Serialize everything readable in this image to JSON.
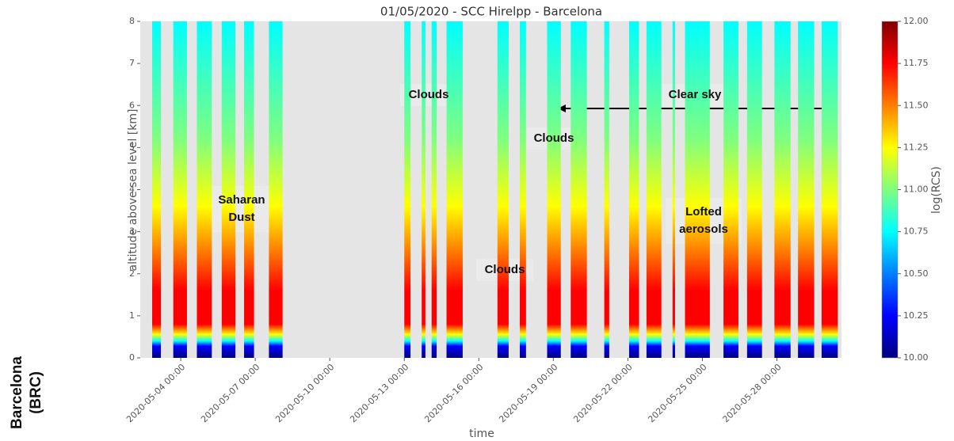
{
  "chart_data": {
    "type": "lidar-timeheight",
    "title": "01/05/2020 - SCC Hirelpp - Barcelona",
    "x_label": "time",
    "y_label": "altitude above sea level [km]",
    "colorbar_label": "log(RCS)",
    "xlim": [
      2.37,
      30.6
    ],
    "xticks": [
      {
        "value": 4,
        "label": "2020-05-04 00:00"
      },
      {
        "value": 7,
        "label": "2020-05-07 00:00"
      },
      {
        "value": 10,
        "label": "2020-05-10 00:00"
      },
      {
        "value": 13,
        "label": "2020-05-13 00:00"
      },
      {
        "value": 16,
        "label": "2020-05-16 00:00"
      },
      {
        "value": 19,
        "label": "2020-05-19 00:00"
      },
      {
        "value": 22,
        "label": "2020-05-22 00:00"
      },
      {
        "value": 25,
        "label": "2020-05-25 00:00"
      },
      {
        "value": 28,
        "label": "2020-05-28 00:00"
      }
    ],
    "ylim": [
      0,
      8
    ],
    "yticks": [
      0,
      1,
      2,
      3,
      4,
      5,
      6,
      7,
      8
    ],
    "clim": [
      10,
      12
    ],
    "cticks": [
      {
        "value": 10,
        "label": "10.00"
      },
      {
        "value": 10.25,
        "label": "10.25"
      },
      {
        "value": 10.5,
        "label": "10.50"
      },
      {
        "value": 10.75,
        "label": "10.75"
      },
      {
        "value": 11,
        "label": "11.00"
      },
      {
        "value": 11.25,
        "label": "11.25"
      },
      {
        "value": 11.5,
        "label": "11.50"
      },
      {
        "value": 11.75,
        "label": "11.75"
      },
      {
        "value": 12,
        "label": "12.00"
      }
    ],
    "colormap": [
      "#00007f",
      "#0000ff",
      "#007fff",
      "#00ffff",
      "#7fff7f",
      "#ffff00",
      "#ff7f00",
      "#ff0000",
      "#7f0000"
    ],
    "measurements": [
      [
        2.85,
        3.2
      ],
      [
        3.7,
        4.25
      ],
      [
        4.65,
        5.25
      ],
      [
        5.65,
        6.2
      ],
      [
        6.55,
        6.95
      ],
      [
        7.55,
        8.1
      ],
      [
        13.0,
        13.25
      ],
      [
        13.7,
        13.85
      ],
      [
        14.1,
        14.3
      ],
      [
        14.7,
        15.35
      ],
      [
        16.75,
        17.2
      ],
      [
        17.65,
        17.9
      ],
      [
        18.75,
        19.3
      ],
      [
        19.7,
        20.35
      ],
      [
        21.05,
        21.25
      ],
      [
        22.05,
        22.45
      ],
      [
        22.75,
        23.35
      ],
      [
        23.8,
        23.9
      ],
      [
        24.3,
        25.3
      ],
      [
        25.85,
        26.45
      ],
      [
        26.8,
        27.4
      ],
      [
        27.9,
        28.55
      ],
      [
        28.85,
        29.5
      ],
      [
        29.8,
        30.45
      ]
    ],
    "annotations": [
      "Saharan Dust",
      "Clouds",
      "Clouds",
      "Clouds",
      "Clear sky",
      "Lofted aerosols"
    ],
    "side_label": [
      "Barcelona",
      "(BRC)"
    ]
  }
}
